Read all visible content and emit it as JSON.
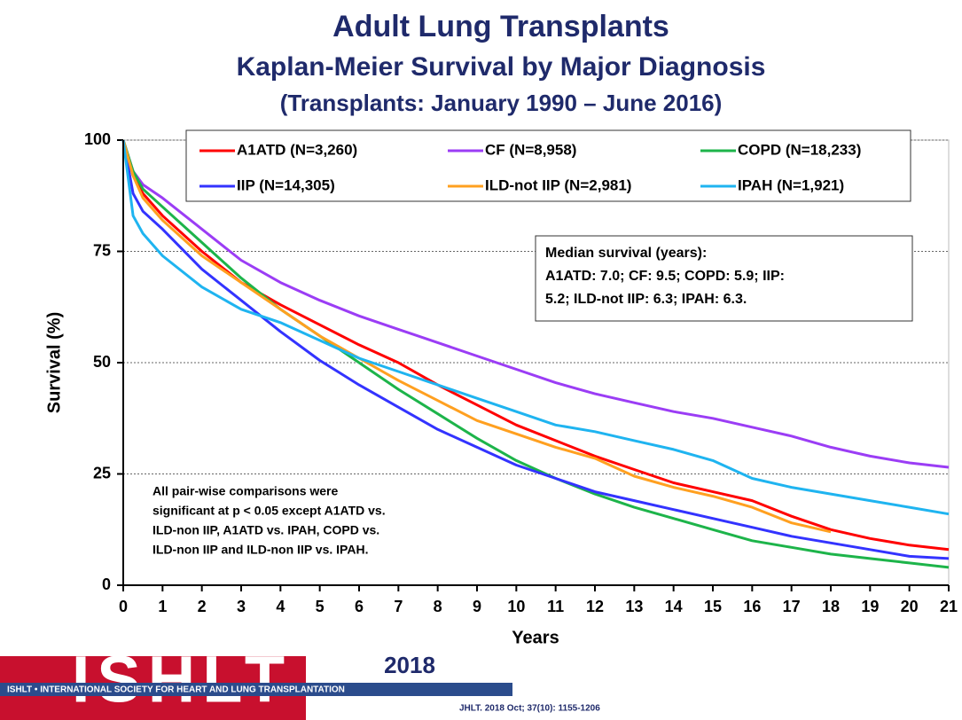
{
  "chart_data": {
    "type": "line",
    "title": "Adult Lung Transplants",
    "subtitle": [
      "Kaplan-Meier Survival by Major Diagnosis",
      "(Transplants: January 1990 – June 2016)"
    ],
    "x_label": "Years",
    "y_label": "Survival (%)",
    "x": [
      0,
      0.25,
      0.5,
      1,
      2,
      3,
      4,
      5,
      6,
      7,
      8,
      9,
      10,
      11,
      12,
      13,
      14,
      15,
      16,
      17,
      18,
      19,
      20,
      21
    ],
    "xlim": [
      0,
      21
    ],
    "ylim": [
      0,
      100
    ],
    "xticks": [
      0,
      1,
      2,
      3,
      4,
      5,
      6,
      7,
      8,
      9,
      10,
      11,
      12,
      13,
      14,
      15,
      16,
      17,
      18,
      19,
      20,
      21
    ],
    "yticks": [
      0,
      25,
      50,
      75,
      100
    ],
    "grid": true,
    "series": [
      {
        "name": "A1ATD (N=3,260)",
        "color": "#ff0000",
        "values": [
          100,
          92,
          88,
          83,
          75,
          68,
          63,
          58.5,
          54,
          50,
          45,
          40.5,
          36,
          32.5,
          29,
          26,
          23,
          21,
          19,
          15.5,
          12.5,
          10.5,
          9,
          8
        ]
      },
      {
        "name": "CF (N=8,958)",
        "color": "#9b3df5",
        "values": [
          100,
          93,
          90,
          87,
          80,
          73,
          68,
          64,
          60.5,
          57.5,
          54.5,
          51.5,
          48.5,
          45.5,
          43,
          41,
          39,
          37.5,
          35.5,
          33.5,
          31,
          29,
          27.5,
          26.5
        ]
      },
      {
        "name": "COPD (N=18,233)",
        "color": "#1db44a",
        "values": [
          100,
          93,
          89,
          85,
          77,
          69,
          62,
          56,
          50,
          44,
          38.5,
          33,
          28,
          24,
          20.5,
          17.5,
          15,
          12.5,
          10,
          8.5,
          7,
          6,
          5,
          4
        ]
      },
      {
        "name": "IIP (N=14,305)",
        "color": "#3333ff",
        "values": [
          100,
          88,
          84,
          80,
          71,
          64,
          57,
          50.5,
          45,
          40,
          35,
          31,
          27,
          24,
          21,
          19,
          17,
          15,
          13,
          11,
          9.5,
          8,
          6.5,
          6
        ]
      },
      {
        "name": "ILD-not IIP (N=2,981)",
        "color": "#ffa020",
        "values": [
          100,
          92,
          87,
          82,
          74,
          68,
          62,
          56,
          51,
          46,
          41.5,
          37,
          34,
          31,
          28.5,
          24.5,
          22,
          20,
          17.5,
          14,
          12,
          null,
          null,
          null
        ]
      },
      {
        "name": "IPAH (N=1,921)",
        "color": "#1fb4f0",
        "values": [
          100,
          83,
          79,
          74,
          67,
          62,
          59,
          55,
          51,
          48,
          45,
          42,
          39,
          36,
          34.5,
          32.5,
          30.5,
          28,
          24,
          22,
          20.5,
          19,
          17.5,
          16
        ]
      }
    ],
    "median_box": [
      "Median survival (years):",
      "A1ATD: 7.0; CF: 9.5; COPD: 5.9; IIP:",
      "5.2;  ILD-not IIP:  6.3; IPAH:  6.3."
    ],
    "note": [
      "All pair-wise comparisons were",
      "significant at p < 0.05 except A1ATD vs.",
      "ILD-non IIP, A1ATD vs. IPAH, COPD vs.",
      "ILD-non IIP and ILD-non IIP vs. IPAH."
    ]
  },
  "footer": {
    "logo": "ISHLT",
    "year": "2018",
    "society": "ISHLT • INTERNATIONAL SOCIETY FOR HEART AND LUNG TRANSPLANTATION",
    "citation": "JHLT. 2018 Oct; 37(10): 1155-1206"
  }
}
